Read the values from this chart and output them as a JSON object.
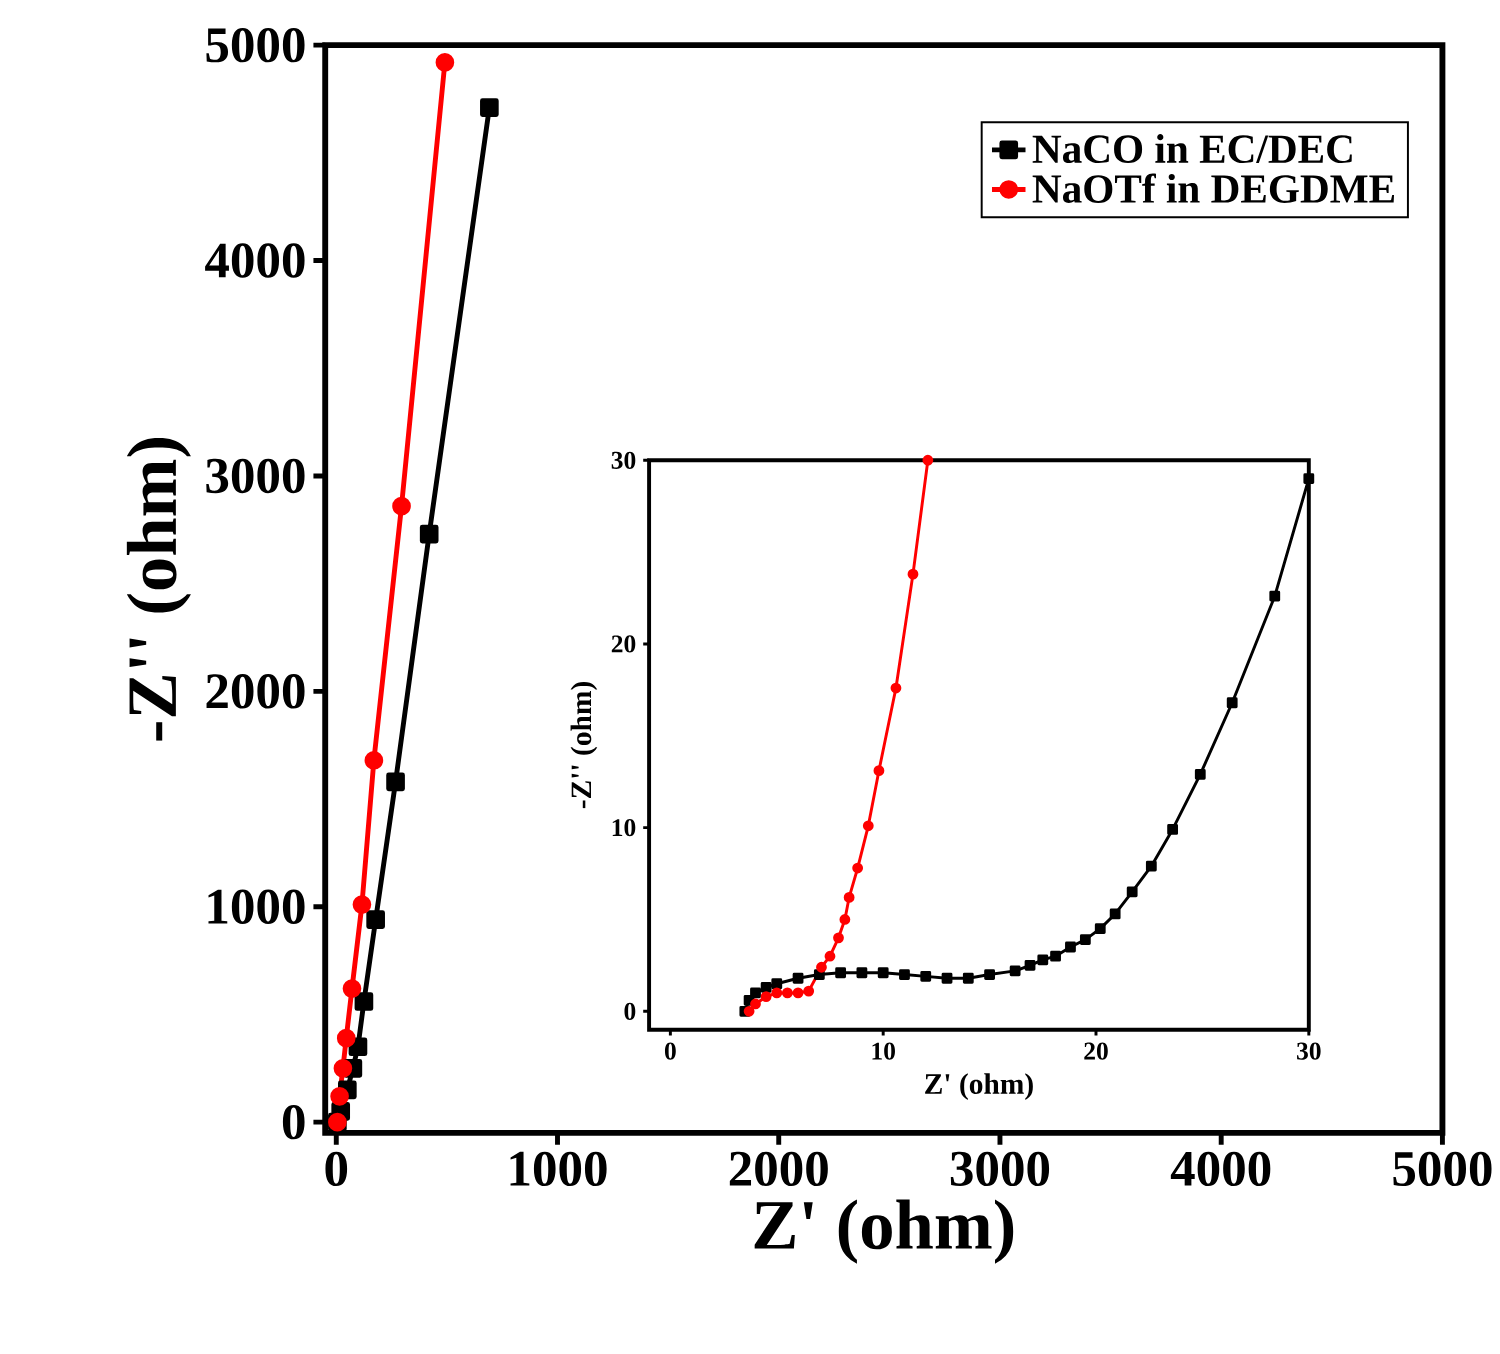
{
  "chart_data": [
    {
      "type": "line",
      "xlabel": "Z' (ohm)",
      "ylabel": "-Z'' (ohm)",
      "xlim": [
        -50,
        5000
      ],
      "ylim": [
        -50,
        5000
      ],
      "xticks": [
        0,
        1000,
        2000,
        3000,
        4000,
        5000
      ],
      "yticks": [
        0,
        1000,
        2000,
        3000,
        4000,
        5000
      ],
      "legend": "top right",
      "series": [
        {
          "name": "NaCO in EC/DEC",
          "color": "#000000",
          "marker": "square",
          "x": [
            5,
            20,
            50,
            75,
            98,
            125,
            178,
            268,
            420,
            692
          ],
          "values": [
            0,
            50,
            150,
            250,
            350,
            560,
            940,
            1580,
            2730,
            4710
          ]
        },
        {
          "name": "NaOTf in DEGDME",
          "color": "#ff0000",
          "marker": "circle",
          "x": [
            5,
            15,
            30,
            45,
            71,
            116,
            170,
            295,
            491
          ],
          "values": [
            0,
            120,
            250,
            390,
            620,
            1010,
            1680,
            2860,
            4920
          ]
        }
      ]
    },
    {
      "type": "line",
      "xlabel": "Z' (ohm)",
      "ylabel": "-Z'' (ohm)",
      "xlim": [
        -1,
        30
      ],
      "ylim": [
        -1,
        30
      ],
      "xticks": [
        0,
        10,
        20,
        30
      ],
      "yticks": [
        0,
        10,
        20,
        30
      ],
      "series": [
        {
          "color": "#000000",
          "marker": "square",
          "x": [
            3.5,
            3.7,
            4,
            4.5,
            5,
            6,
            7,
            8,
            9,
            10,
            11,
            12,
            13,
            14,
            15,
            16.2,
            16.9,
            17.5,
            18.1,
            18.8,
            19.5,
            20.2,
            20.9,
            21.7,
            22.6,
            23.6,
            24.9,
            26.4,
            28.4,
            30
          ],
          "values": [
            0,
            0.6,
            1.0,
            1.3,
            1.5,
            1.8,
            2.0,
            2.1,
            2.1,
            2.1,
            2.0,
            1.9,
            1.8,
            1.8,
            2.0,
            2.2,
            2.5,
            2.8,
            3.0,
            3.5,
            3.9,
            4.5,
            5.3,
            6.5,
            7.9,
            9.9,
            12.9,
            16.8,
            22.6,
            29
          ]
        },
        {
          "color": "#ff0000",
          "marker": "circle",
          "x": [
            3.7,
            4,
            4.5,
            5,
            5.5,
            6,
            6.5,
            7.1,
            7.5,
            7.9,
            8.2,
            8.4,
            8.8,
            9.3,
            9.8,
            10.6,
            11.4,
            12.1
          ],
          "values": [
            0,
            0.4,
            0.8,
            1.0,
            1.0,
            1.0,
            1.1,
            2.4,
            3.0,
            4.0,
            5.0,
            6.2,
            7.8,
            10.1,
            13.1,
            17.6,
            23.8,
            30
          ]
        }
      ]
    }
  ]
}
